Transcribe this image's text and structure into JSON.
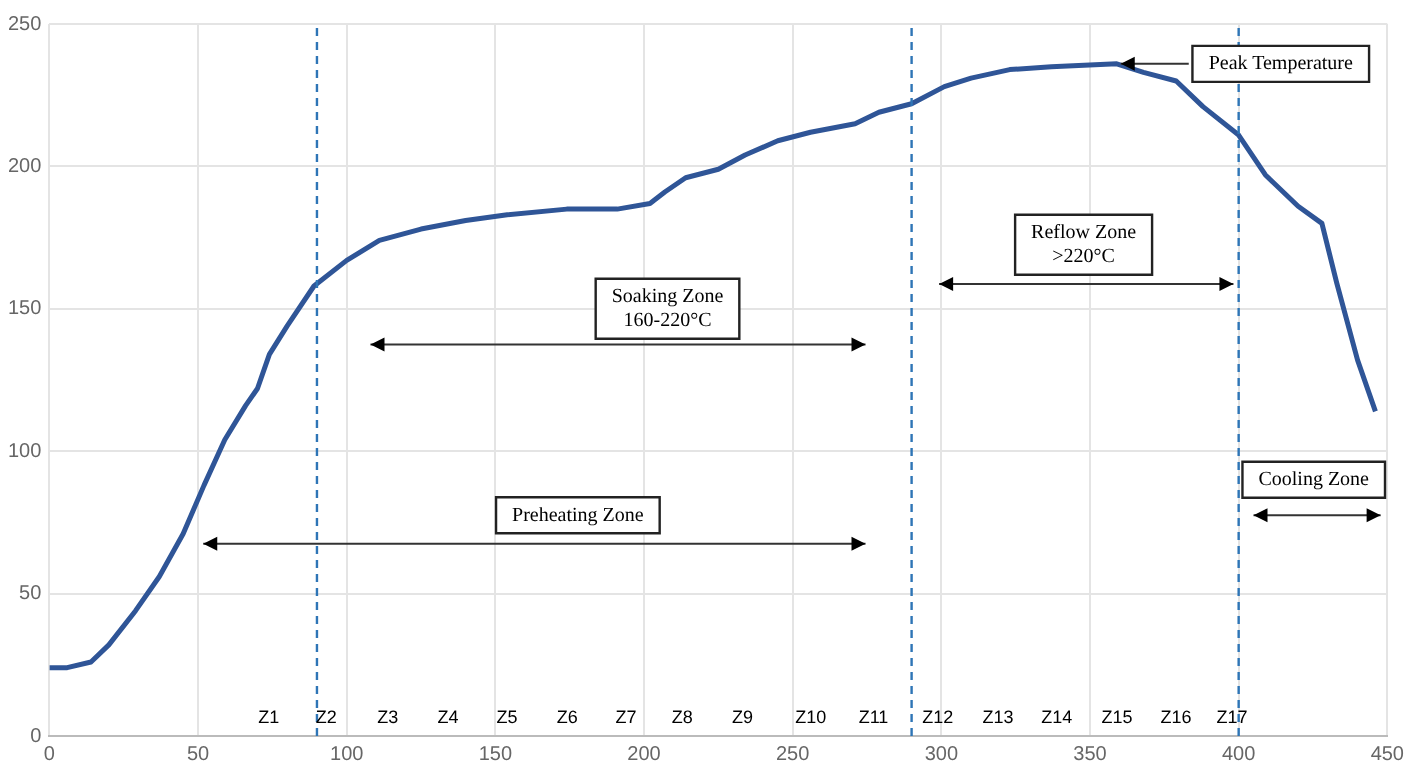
{
  "chart_data": {
    "type": "line",
    "x": [
      0,
      6,
      14,
      20,
      29,
      37,
      45,
      52,
      59,
      66,
      70,
      74,
      80,
      89,
      100,
      111,
      125,
      140,
      154,
      174,
      191,
      202,
      207,
      214,
      225,
      234,
      245,
      256,
      271,
      279,
      290,
      301,
      310,
      323,
      337,
      359,
      368,
      379,
      388,
      400,
      409,
      420,
      428,
      433,
      440,
      446
    ],
    "series": [
      {
        "color": "#2f5597",
        "values": [
          24,
          24,
          26,
          32,
          44,
          56,
          71,
          88,
          104,
          116,
          122,
          134,
          144,
          158,
          167,
          174,
          178,
          181,
          183,
          185,
          185,
          187,
          191,
          196,
          199,
          204,
          209,
          212,
          215,
          219,
          222,
          228,
          231,
          234,
          235,
          236,
          233,
          230,
          221,
          211,
          197,
          186,
          180,
          159,
          132,
          114
        ]
      }
    ],
    "xlim": [
      0,
      450
    ],
    "xticks": [
      0,
      50,
      100,
      150,
      200,
      250,
      300,
      350,
      400,
      450
    ],
    "ylim": [
      0,
      250
    ],
    "yticks": [
      0,
      50,
      100,
      150,
      200,
      250
    ],
    "grid": true,
    "legend": false,
    "marker": "none",
    "line_style": "solid",
    "ref_lines": [
      {
        "axis": "x",
        "value": 90,
        "color": "#2e75b6",
        "line_style": "dashed"
      },
      {
        "axis": "x",
        "value": 290,
        "color": "#2e75b6",
        "line_style": "dashed"
      },
      {
        "axis": "x",
        "value": 400,
        "color": "#2e75b6",
        "line_style": "dashed"
      }
    ],
    "annotations": [
      "Preheating Zone",
      "Soaking Zone\n160-220°C",
      "Reflow Zone\n>220°C",
      {
        "text": "Peak Temperature",
        "x": 359,
        "y": 236
      },
      "Cooling Zone",
      "Z1",
      "Z2",
      "Z3",
      "Z4",
      "Z5",
      "Z6",
      "Z7",
      "Z8",
      "Z9",
      "Z10",
      "Z11",
      "Z12",
      "Z13",
      "Z14",
      "Z15",
      "Z16",
      "Z17"
    ]
  }
}
